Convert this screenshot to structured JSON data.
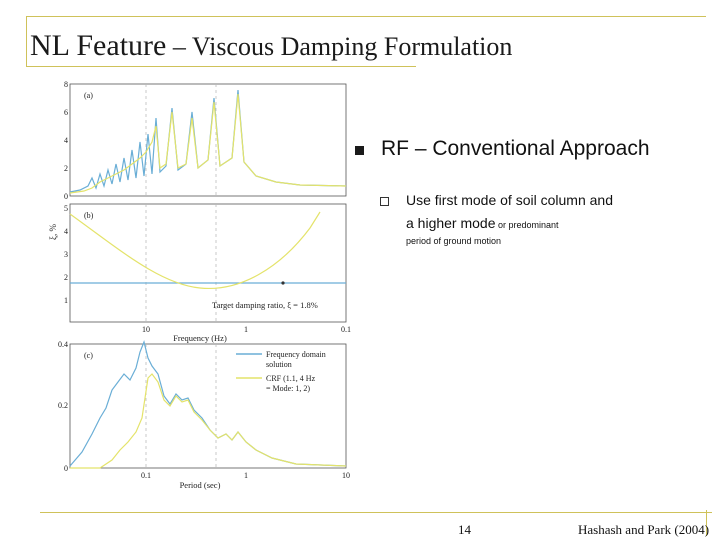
{
  "slide": {
    "title_main": "NL Feature",
    "title_dash": " – ",
    "title_sub": "Viscous Damping Formulation",
    "page_number": "14",
    "citation": "Hashash and Park (2004)"
  },
  "bullets": {
    "main": "RF – Conventional Approach",
    "sub_line1": "Use first mode of soil column and",
    "sub_line2_big": "a higher mode",
    "sub_line2_small": " or predominant",
    "sub_line3": "period of ground motion"
  },
  "colors": {
    "accent_line": "#cfc25a",
    "series_frequency_domain": "#6aaed6",
    "series_crf": "#e4e36a",
    "target_line": "#6aaed6"
  },
  "figure": {
    "panel_a": {
      "label": "(a)",
      "y_ticks": [
        "8",
        "6",
        "4",
        "2",
        "0"
      ]
    },
    "panel_b": {
      "label": "(b)",
      "y_ticks": [
        "5",
        "4",
        "3",
        "2",
        "1"
      ],
      "y_axis_label": "ξ, %",
      "annotation": "Target damping ratio, ξ = 1.8%",
      "x_ticks": [
        "10",
        "1",
        "0.1"
      ],
      "x_label": "Frequency (Hz)"
    },
    "panel_c": {
      "label": "(c)",
      "y_ticks": [
        "0.4",
        "0.2",
        "0"
      ],
      "x_ticks": [
        "0.1",
        "1",
        "10"
      ],
      "x_label": "Period (sec)",
      "legend": {
        "frequency_domain_1": "Frequency domain",
        "frequency_domain_2": "solution",
        "crf_1": "CRF (1.1, 4 Hz",
        "crf_2": "= Mode: 1, 2)"
      }
    }
  }
}
